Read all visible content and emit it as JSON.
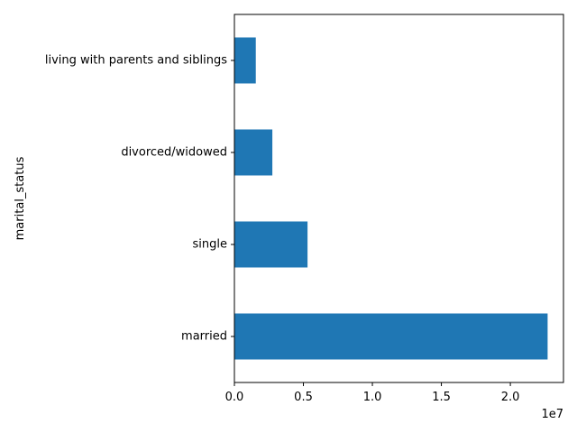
{
  "chart_data": {
    "type": "bar",
    "orientation": "horizontal",
    "categories": [
      "married",
      "single",
      "divorced/widowed",
      "living with parents and siblings"
    ],
    "values": [
      22700000,
      5300000,
      2750000,
      1550000
    ],
    "title": "",
    "xlabel": "",
    "ylabel": "marital_status",
    "xlim": [
      0,
      23850000
    ],
    "x_ticks": [
      0,
      5000000,
      10000000,
      15000000,
      20000000
    ],
    "x_tick_labels": [
      "0.0",
      "0.5",
      "1.0",
      "1.5",
      "2.0"
    ],
    "x_offset_label": "1e7",
    "grid": false,
    "legend": "none",
    "bar_color": "#1f77b4"
  }
}
